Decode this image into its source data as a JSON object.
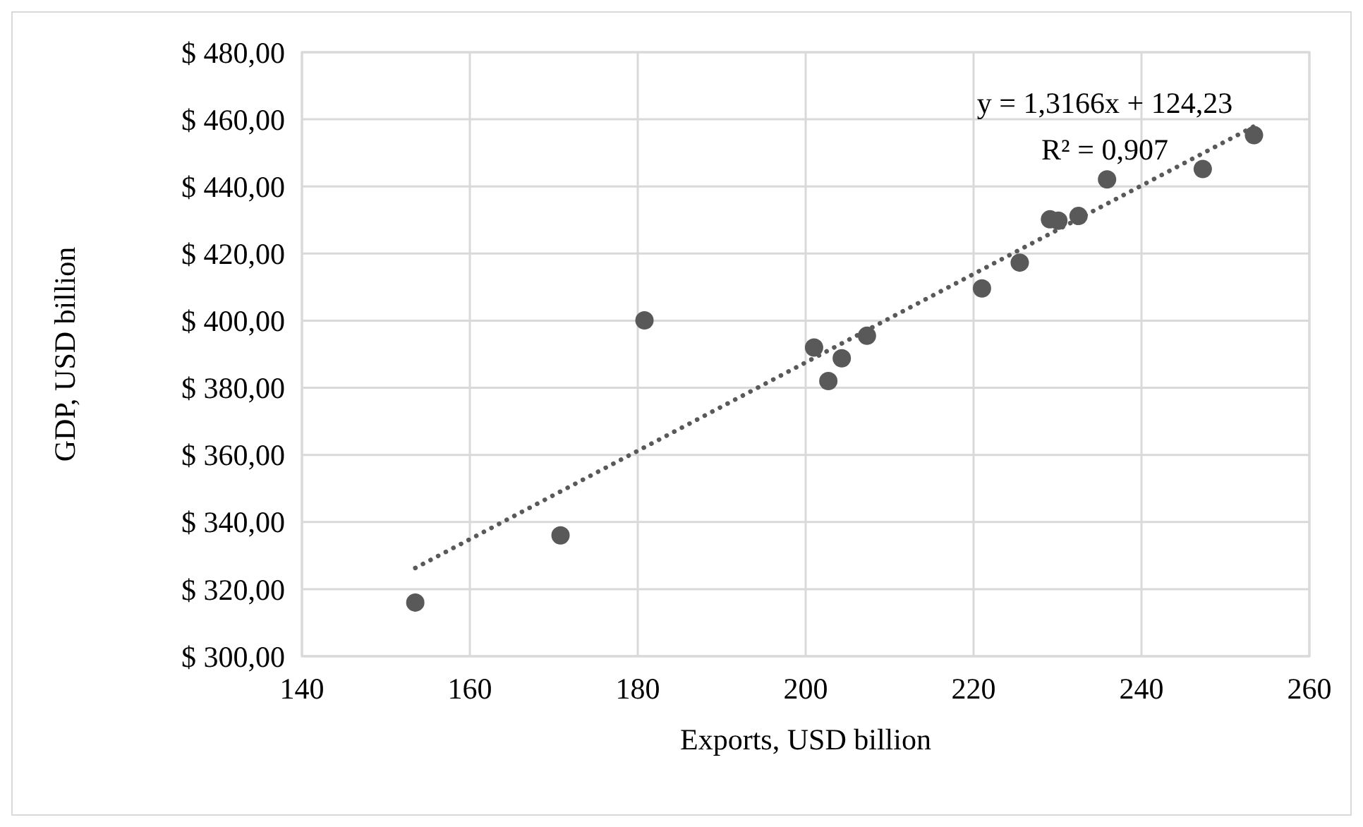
{
  "chart_data": {
    "type": "scatter",
    "xlabel": "Exports, USD billion",
    "ylabel": "GDP, USD billion",
    "xlim": [
      140,
      260
    ],
    "xticks": [
      140,
      160,
      180,
      200,
      220,
      240,
      260
    ],
    "ylim": [
      300,
      480
    ],
    "yticks": [
      {
        "value": 300,
        "label": "$ 300,00"
      },
      {
        "value": 320,
        "label": "$ 320,00"
      },
      {
        "value": 340,
        "label": "$ 340,00"
      },
      {
        "value": 360,
        "label": "$ 360,00"
      },
      {
        "value": 380,
        "label": "$ 380,00"
      },
      {
        "value": 400,
        "label": "$ 400,00"
      },
      {
        "value": 420,
        "label": "$ 420,00"
      },
      {
        "value": 440,
        "label": "$ 440,00"
      },
      {
        "value": 460,
        "label": "$ 460,00"
      },
      {
        "value": 480,
        "label": "$ 480,00"
      }
    ],
    "grid": true,
    "marker": "circle",
    "series": [
      {
        "color": "#595959",
        "x": [
          153.5,
          170.8,
          180.8,
          201.0,
          202.7,
          204.3,
          207.3,
          221.0,
          225.5,
          229.1,
          230.1,
          232.5,
          235.9,
          247.3,
          253.4
        ],
        "values": [
          316.0,
          336.0,
          400.1,
          392.0,
          382.0,
          388.8,
          395.5,
          409.6,
          417.3,
          430.2,
          429.8,
          431.2,
          442.1,
          445.2,
          455.3
        ]
      },
      {
        "type": "line",
        "color": "#595959",
        "line_style": "dotted",
        "marker": "none",
        "x": [
          153.5,
          253.4
        ],
        "values": [
          326.3,
          457.9
        ]
      }
    ],
    "annotations": [
      "y = 1,3166x + 124,23",
      "R² = 0,907"
    ]
  }
}
